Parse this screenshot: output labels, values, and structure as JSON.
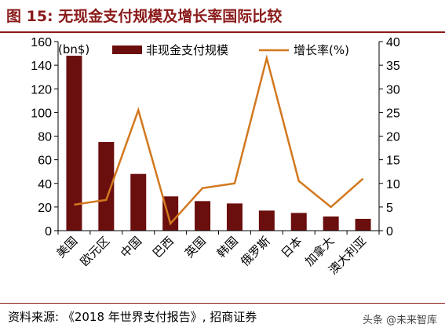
{
  "header": {
    "title": "图 15:  无现金支付规模及增长率国际比较"
  },
  "footer": {
    "source": "资料来源:  《2018 年世界支付报告》,  招商证券",
    "watermark": "头条 @未来智库"
  },
  "colors": {
    "bar": "#6b0e0e",
    "line": "#d2781e",
    "accent": "#8b1a1a"
  },
  "chart_data": {
    "type": "bar",
    "categories": [
      "美国",
      "欧元区",
      "中国",
      "巴西",
      "英国",
      "韩国",
      "俄罗斯",
      "日本",
      "加拿大",
      "澳大利亚"
    ],
    "series": [
      {
        "name": "非现金支付规模",
        "type": "bar",
        "axis": "left",
        "values": [
          148,
          75,
          48,
          29,
          25,
          23,
          17,
          15,
          12,
          10
        ]
      },
      {
        "name": "增长率(%)",
        "type": "line",
        "axis": "right",
        "values": [
          5.5,
          6.5,
          25.5,
          1.5,
          9,
          10,
          36.5,
          10.5,
          5,
          11
        ]
      }
    ],
    "ylabel": "(bn$)",
    "ylim": [
      0,
      160
    ],
    "yticks": [
      0,
      20,
      40,
      60,
      80,
      100,
      120,
      140,
      160
    ],
    "y2lim": [
      0,
      40
    ],
    "y2ticks": [
      0,
      5,
      10,
      15,
      20,
      25,
      30,
      35,
      40
    ],
    "legend": "top",
    "grid": false
  }
}
